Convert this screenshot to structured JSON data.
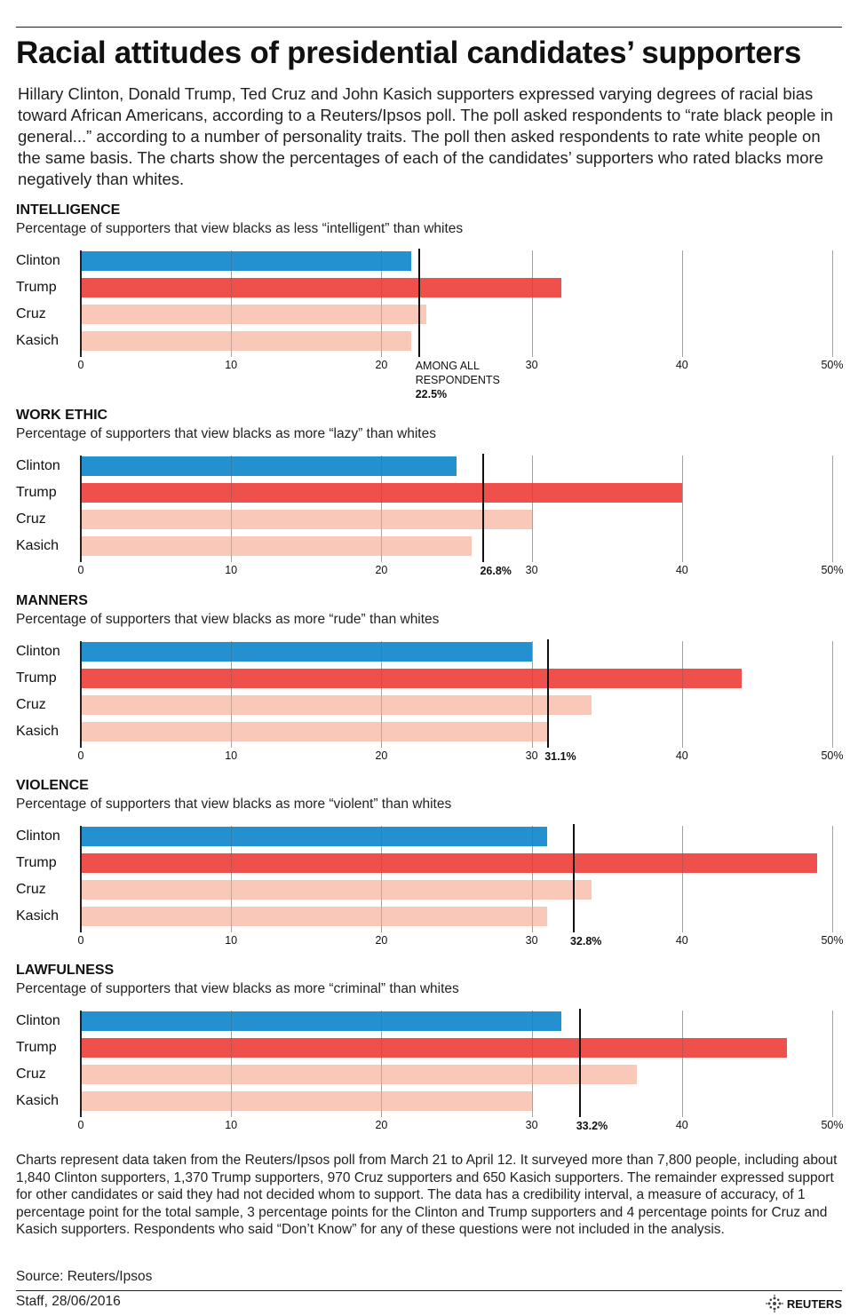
{
  "title": "Racial attitudes of presidential candidates’ supporters",
  "intro": "Hillary Clinton, Donald Trump, Ted Cruz and John Kasich supporters expressed varying degrees of racial bias toward African Americans, according to a Reuters/Ipsos poll. The poll asked respondents to “rate black people in general...” according to a number of personality traits. The poll then asked respondents to rate white people on the same basis. The charts show the percentages of each of the candidates’ supporters who rated blacks more negatively than whites.",
  "colors": {
    "Clinton": "#2390d0",
    "Trump": "#f0504c",
    "Cruz": "#f9c8b9",
    "Kasich": "#f9c8b9",
    "reference": "#111111"
  },
  "chart_data": [
    {
      "type": "bar",
      "orientation": "horizontal",
      "title": "INTELLIGENCE",
      "subtitle": "Percentage of supporters that view blacks as less “intelligent” than whites",
      "categories": [
        "Clinton",
        "Trump",
        "Cruz",
        "Kasich"
      ],
      "values": [
        22,
        32,
        23,
        22
      ],
      "reference": {
        "value": 22.5,
        "label_lines": [
          "AMONG ALL",
          "RESPONDENTS"
        ],
        "label": "22.5%"
      },
      "xticks": [
        "0",
        "10",
        "20",
        "30",
        "40",
        "50%"
      ],
      "xlim": [
        0,
        50
      ],
      "grid": true
    },
    {
      "type": "bar",
      "orientation": "horizontal",
      "title": "WORK ETHIC",
      "subtitle": "Percentage of supporters that view blacks as more “lazy” than whites",
      "categories": [
        "Clinton",
        "Trump",
        "Cruz",
        "Kasich"
      ],
      "values": [
        25,
        40,
        30,
        26
      ],
      "reference": {
        "value": 26.8,
        "label": "26.8%"
      },
      "xticks": [
        "0",
        "10",
        "20",
        "30",
        "40",
        "50%"
      ],
      "xlim": [
        0,
        50
      ],
      "grid": true
    },
    {
      "type": "bar",
      "orientation": "horizontal",
      "title": "MANNERS",
      "subtitle": "Percentage of supporters that view blacks as more “rude” than whites",
      "categories": [
        "Clinton",
        "Trump",
        "Cruz",
        "Kasich"
      ],
      "values": [
        30,
        44,
        34,
        31
      ],
      "reference": {
        "value": 31.1,
        "label": "31.1%"
      },
      "xticks": [
        "0",
        "10",
        "20",
        "30",
        "40",
        "50%"
      ],
      "xlim": [
        0,
        50
      ],
      "grid": true
    },
    {
      "type": "bar",
      "orientation": "horizontal",
      "title": "VIOLENCE",
      "subtitle": "Percentage of supporters that view blacks as more “violent” than whites",
      "categories": [
        "Clinton",
        "Trump",
        "Cruz",
        "Kasich"
      ],
      "values": [
        31,
        49,
        34,
        31
      ],
      "reference": {
        "value": 32.8,
        "label": "32.8%"
      },
      "xticks": [
        "0",
        "10",
        "20",
        "30",
        "40",
        "50%"
      ],
      "xlim": [
        0,
        50
      ],
      "grid": true
    },
    {
      "type": "bar",
      "orientation": "horizontal",
      "title": "LAWFULNESS",
      "subtitle": "Percentage of supporters that view blacks as more “criminal” than whites",
      "categories": [
        "Clinton",
        "Trump",
        "Cruz",
        "Kasich"
      ],
      "values": [
        32,
        47,
        37,
        30
      ],
      "reference": {
        "value": 33.2,
        "label": "33.2%"
      },
      "xticks": [
        "0",
        "10",
        "20",
        "30",
        "40",
        "50%"
      ],
      "xlim": [
        0,
        50
      ],
      "grid": true
    }
  ],
  "notes": "Charts represent data taken from the Reuters/Ipsos poll from March 21 to April 12. It surveyed more than 7,800 people, including about 1,840 Clinton supporters, 1,370 Trump supporters, 970 Cruz supporters and 650 Kasich supporters. The remainder expressed support for other candidates or said they had not decided whom to support. The data has a credibility interval, a measure of accuracy, of 1 percentage point for the total sample, 3 percentage points for the Clinton and Trump supporters and 4 percentage points for Cruz and Kasich supporters. Respondents who said “Don’t Know” for any of these questions were not included in the analysis.",
  "source": "Source: Reuters/Ipsos",
  "credit": "Staff,  28/06/2016",
  "logo": "REUTERS"
}
